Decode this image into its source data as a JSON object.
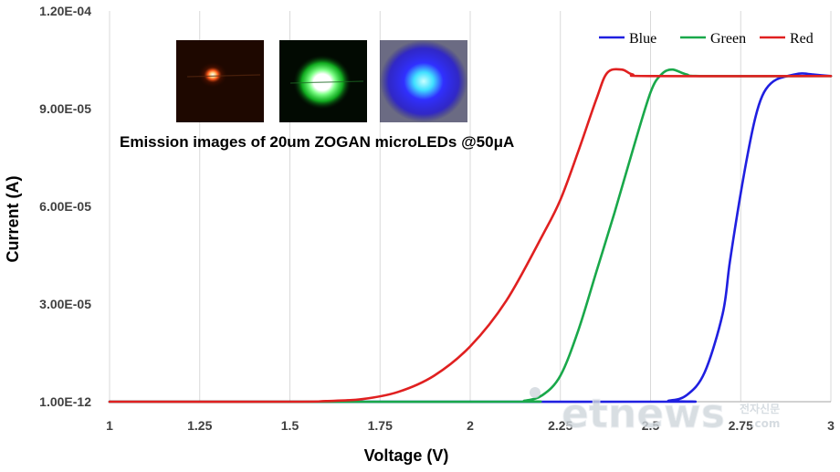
{
  "chart_data": {
    "type": "line",
    "title": "",
    "xlabel": "Voltage (V)",
    "ylabel": "Current (A)",
    "xlim": [
      1,
      3
    ],
    "ylim": [
      0,
      0.00012
    ],
    "x_ticks": [
      1,
      1.25,
      1.5,
      1.75,
      2,
      2.25,
      2.5,
      2.75,
      3
    ],
    "x_tick_labels": [
      "1",
      "1.25",
      "1.5",
      "1.75",
      "2",
      "2.25",
      "2.5",
      "2.75",
      "3"
    ],
    "y_ticks": [
      0,
      3e-05,
      6e-05,
      9e-05,
      0.00012
    ],
    "y_tick_labels": [
      "1.00E-12",
      "3.00E-05",
      "6.00E-05",
      "9.00E-05",
      "1.20E-04"
    ],
    "grid": "vertical",
    "legend": "top-right",
    "series": [
      {
        "name": "Blue",
        "color": "#1f1fe0",
        "points": [
          [
            1,
            0
          ],
          [
            2.5,
            0
          ],
          [
            2.55,
            3e-07
          ],
          [
            2.6,
            2e-06
          ],
          [
            2.65,
            9e-06
          ],
          [
            2.7,
            2.7e-05
          ],
          [
            2.72,
            4.3e-05
          ],
          [
            2.75,
            6.4e-05
          ],
          [
            2.78,
            8.2e-05
          ],
          [
            2.8,
            9.1e-05
          ],
          [
            2.82,
            9.6e-05
          ],
          [
            2.85,
            9.9e-05
          ],
          [
            2.9,
            0.0001005
          ],
          [
            2.92,
            0.0001008
          ],
          [
            2.95,
            0.0001005
          ],
          [
            3,
            0.0001
          ]
        ]
      },
      {
        "name": "Green",
        "color": "#19a84a",
        "points": [
          [
            1,
            0
          ],
          [
            2.1,
            0
          ],
          [
            2.15,
            3e-07
          ],
          [
            2.2,
            2e-06
          ],
          [
            2.25,
            8e-06
          ],
          [
            2.3,
            2.2e-05
          ],
          [
            2.35,
            4e-05
          ],
          [
            2.4,
            5.8e-05
          ],
          [
            2.45,
            7.7e-05
          ],
          [
            2.5,
            9.5e-05
          ],
          [
            2.53,
            0.0001005
          ],
          [
            2.56,
            0.000102
          ],
          [
            2.6,
            0.0001005
          ],
          [
            2.65,
            0.0001
          ],
          [
            3,
            0.0001
          ]
        ]
      },
      {
        "name": "Red",
        "color": "#e02020",
        "points": [
          [
            1,
            0
          ],
          [
            1.5,
            0
          ],
          [
            1.6,
            2e-07
          ],
          [
            1.7,
            8e-07
          ],
          [
            1.8,
            3e-06
          ],
          [
            1.9,
            8e-06
          ],
          [
            2,
            1.7e-05
          ],
          [
            2.1,
            3.1e-05
          ],
          [
            2.2,
            5.1e-05
          ],
          [
            2.25,
            6.2e-05
          ],
          [
            2.3,
            7.7e-05
          ],
          [
            2.35,
            9.3e-05
          ],
          [
            2.38,
            0.000101
          ],
          [
            2.42,
            0.000102
          ],
          [
            2.45,
            0.0001005
          ],
          [
            2.5,
            0.0001
          ],
          [
            3,
            0.0001
          ]
        ]
      }
    ]
  },
  "inset": {
    "caption": "Emission images of 20um ZOGAN microLEDs @50μA",
    "images": [
      {
        "name": "red-emission-image",
        "color": "#ff5a1a",
        "bg": "#2a0a00"
      },
      {
        "name": "green-emission-image",
        "color": "#2cff3c",
        "bg": "#041204"
      },
      {
        "name": "blue-emission-image",
        "color": "#3030ff",
        "bg": "#080830"
      }
    ]
  },
  "watermark": {
    "main": "etnews",
    "small_top": "전자신문",
    "small_bottom": ".com"
  }
}
